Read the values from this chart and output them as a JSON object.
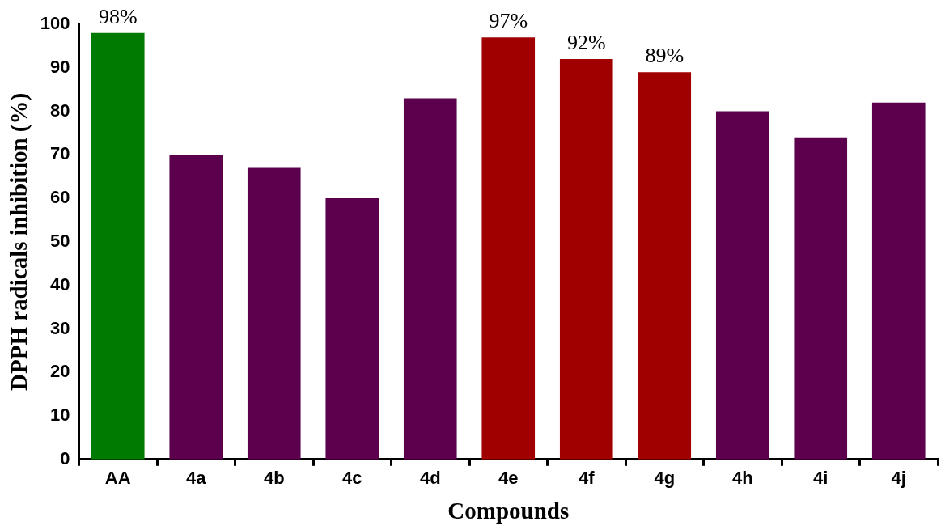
{
  "chart_data": {
    "type": "bar",
    "xlabel": "Compounds",
    "ylabel": "DPPH radicals inhibition (%)",
    "categories": [
      "AA",
      "4a",
      "4b",
      "4c",
      "4d",
      "4e",
      "4f",
      "4g",
      "4h",
      "4i",
      "4j"
    ],
    "values": [
      98,
      70,
      67,
      60,
      83,
      97,
      92,
      89,
      80,
      74,
      82
    ],
    "colors": [
      "#007a00",
      "#5c004d",
      "#5c004d",
      "#5c004d",
      "#5c004d",
      "#a00000",
      "#a00000",
      "#a00000",
      "#5c004d",
      "#5c004d",
      "#5c004d"
    ],
    "value_labels": [
      "98%",
      null,
      null,
      null,
      null,
      "97%",
      "92%",
      "89%",
      null,
      null,
      null
    ],
    "ylim": [
      0,
      100
    ],
    "yticks": [
      0,
      10,
      20,
      30,
      40,
      50,
      60,
      70,
      80,
      90,
      100
    ],
    "grid": false,
    "legend": false
  }
}
